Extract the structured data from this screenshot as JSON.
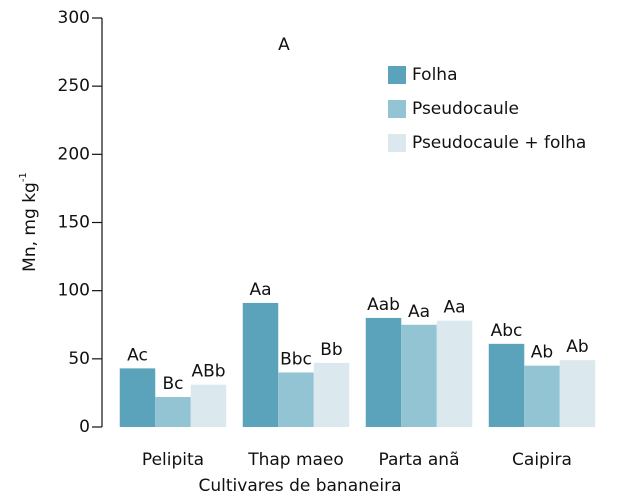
{
  "chart_data": {
    "type": "bar",
    "annotation": "A",
    "x_label": "Cultivares de bananeira",
    "y_label": {
      "text": "Mn, mg kg",
      "sup": "-1"
    },
    "categories": [
      "Pelipita",
      "Thap maeo",
      "Parta anã",
      "Caipira"
    ],
    "series": [
      {
        "name": "Folha",
        "color": "#5ba3bb",
        "values": [
          43,
          91,
          80,
          61
        ],
        "letters": [
          "Ac",
          "Aa",
          "Aab",
          "Abc"
        ]
      },
      {
        "name": "Pseudocaule",
        "color": "#93c4d3",
        "values": [
          22,
          40,
          75,
          45
        ],
        "letters": [
          "Bc",
          "Bbc",
          "Aa",
          "Ab"
        ]
      },
      {
        "name": "Pseudocaule + folha",
        "color": "#dbe9ef",
        "values": [
          31,
          47,
          78,
          49
        ],
        "letters": [
          "ABb",
          "Bb",
          "Aa",
          "Ab"
        ]
      }
    ],
    "ylim": [
      0,
      300
    ],
    "yticks": [
      0,
      50,
      100,
      150,
      200,
      250,
      300
    ]
  }
}
